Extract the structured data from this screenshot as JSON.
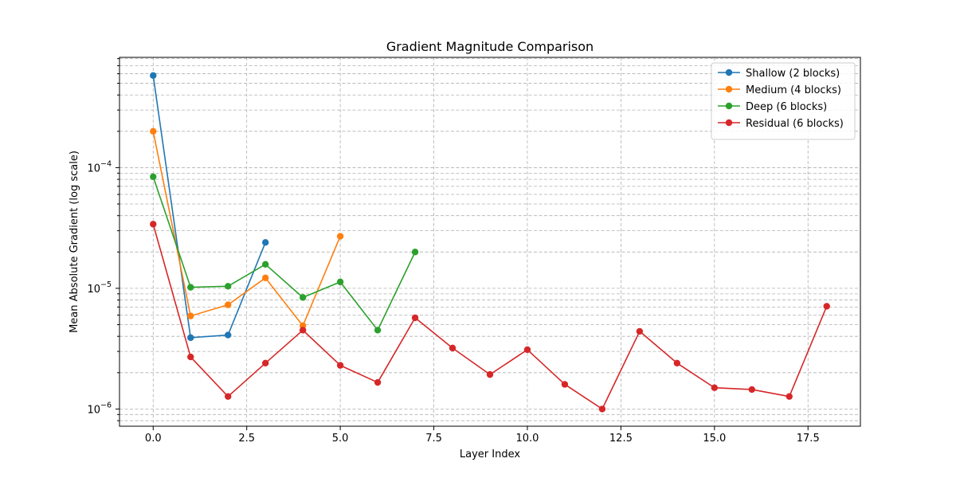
{
  "chart_data": {
    "type": "line",
    "title": "Gradient Magnitude Comparison",
    "xlabel": "Layer Index",
    "ylabel": "Mean Absolute Gradient (log scale)",
    "yscale": "log",
    "xlim": [
      -0.9,
      18.9
    ],
    "ylim": [
      7.2e-07,
      0.00082
    ],
    "xticks": [
      0.0,
      2.5,
      5.0,
      7.5,
      10.0,
      12.5,
      15.0,
      17.5
    ],
    "xtick_labels": [
      "0.0",
      "2.5",
      "5.0",
      "7.5",
      "10.0",
      "12.5",
      "15.0",
      "17.5"
    ],
    "yticks": [
      {
        "base": "10",
        "exp": "−6",
        "value": 1e-06
      },
      {
        "base": "10",
        "exp": "−5",
        "value": 1e-05
      },
      {
        "base": "10",
        "exp": "−4",
        "value": 0.0001
      }
    ],
    "grid": true,
    "legend_position": "top-right",
    "series": [
      {
        "name": "Shallow (2 blocks)",
        "color": "#1f77b4",
        "x": [
          0,
          1,
          2,
          3
        ],
        "y": [
          0.00058,
          3.9e-06,
          4.1e-06,
          2.4e-05
        ]
      },
      {
        "name": "Medium (4 blocks)",
        "color": "#ff7f0e",
        "x": [
          0,
          1,
          2,
          3,
          4,
          5
        ],
        "y": [
          0.0002,
          5.9e-06,
          7.3e-06,
          1.22e-05,
          4.9e-06,
          2.7e-05
        ]
      },
      {
        "name": "Deep (6 blocks)",
        "color": "#2ca02c",
        "x": [
          0,
          1,
          2,
          3,
          4,
          5,
          6,
          7
        ],
        "y": [
          8.4e-05,
          1.02e-05,
          1.04e-05,
          1.58e-05,
          8.4e-06,
          1.13e-05,
          4.5e-06,
          2e-05
        ]
      },
      {
        "name": "Residual (6 blocks)",
        "color": "#d62728",
        "x": [
          0,
          1,
          2,
          3,
          4,
          5,
          6,
          7,
          8,
          9,
          10,
          11,
          12,
          13,
          14,
          15,
          16,
          17,
          18
        ],
        "y": [
          3.4e-05,
          2.7e-06,
          1.27e-06,
          2.4e-06,
          4.5e-06,
          2.3e-06,
          1.66e-06,
          5.7e-06,
          3.2e-06,
          1.93e-06,
          3.1e-06,
          1.6e-06,
          1e-06,
          4.4e-06,
          2.4e-06,
          1.5e-06,
          1.45e-06,
          1.27e-06,
          7.1e-06
        ]
      }
    ]
  }
}
